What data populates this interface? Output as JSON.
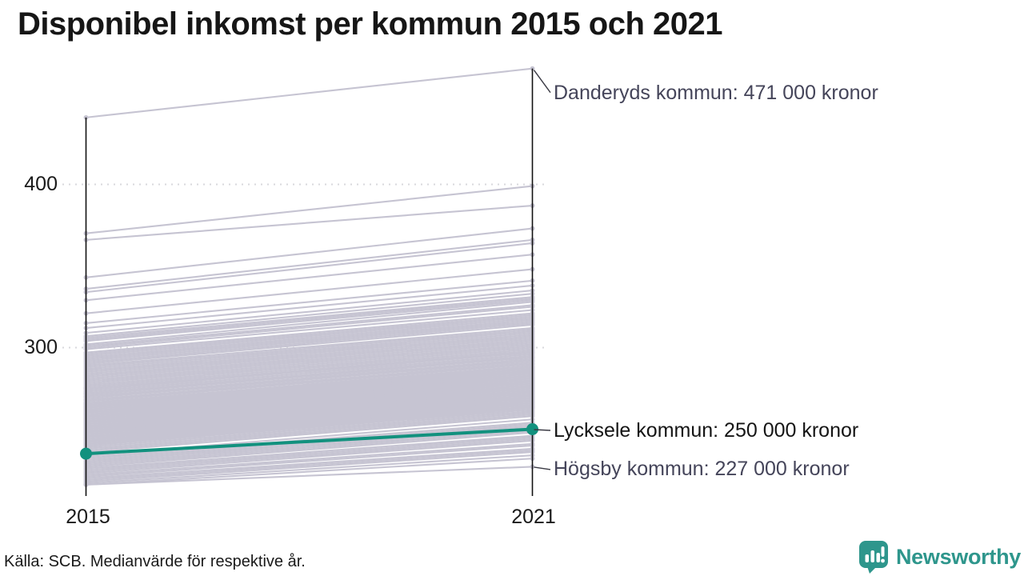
{
  "title": "Disponibel inkomst per kommun 2015 och 2021",
  "source_note": "Källa: SCB. Medianvärde för respektive år.",
  "branding": {
    "logo_text": "Newsworthy",
    "logo_color": "#2e968c",
    "logo_icon": "bar-chart-speech-bubble"
  },
  "chart_data": {
    "type": "line",
    "subtype": "slope",
    "title": "Disponibel inkomst per kommun 2015 och 2021",
    "x": [
      "2015",
      "2021"
    ],
    "unit": "thousand kronor (median disposable income)",
    "ylim": [
      210,
      480
    ],
    "grid": "dotted horizontal at yticks",
    "legend": "none",
    "yticks": [
      {
        "label": "400",
        "value": 400
      },
      {
        "label": "300",
        "value": 300
      }
    ],
    "xticks": [
      {
        "label": "2015"
      },
      {
        "label": "2021"
      }
    ],
    "line_color": "#c6c4d2",
    "axis_color": "#111111",
    "highlight": {
      "name": "Lycksele kommun",
      "values": [
        235,
        250
      ],
      "color": "#12917e"
    },
    "annotations": [
      {
        "id": "max",
        "label": "Danderyds kommun: 471 000 kronor",
        "value": 471,
        "color": "#45455a"
      },
      {
        "id": "highlight",
        "label": "Lycksele kommun: 250 000 kronor",
        "value": 250,
        "color": "#151515"
      },
      {
        "id": "min",
        "label": "Högsby kommun: 227 000 kronor",
        "value": 227,
        "color": "#45455a"
      }
    ],
    "lines": [
      [
        441,
        471
      ],
      [
        370,
        399
      ],
      [
        366,
        387
      ],
      [
        343,
        373
      ],
      [
        336,
        366
      ],
      [
        334,
        364
      ],
      [
        329,
        357
      ],
      [
        321,
        348
      ],
      [
        315,
        341
      ],
      [
        312,
        338
      ],
      [
        309,
        335
      ],
      [
        307,
        333
      ],
      [
        306,
        331
      ],
      [
        305,
        330
      ],
      [
        304,
        329
      ],
      [
        302,
        328
      ],
      [
        301,
        326
      ],
      [
        300,
        325
      ],
      [
        299,
        323
      ],
      [
        297,
        321
      ],
      [
        296,
        320
      ],
      [
        295,
        319
      ],
      [
        294,
        318
      ],
      [
        293,
        317
      ],
      [
        292,
        316
      ],
      [
        291,
        315
      ],
      [
        290,
        314
      ],
      [
        289,
        312
      ],
      [
        288,
        311
      ],
      [
        287,
        310
      ],
      [
        286,
        309
      ],
      [
        285,
        308
      ],
      [
        284,
        307
      ],
      [
        283,
        306
      ],
      [
        282,
        305
      ],
      [
        281,
        304
      ],
      [
        280,
        303
      ],
      [
        279,
        302
      ],
      [
        278,
        301
      ],
      [
        277,
        300
      ],
      [
        276,
        299
      ],
      [
        275,
        298
      ],
      [
        275,
        297
      ],
      [
        274,
        297
      ],
      [
        273,
        296
      ],
      [
        272,
        295
      ],
      [
        272,
        294
      ],
      [
        271,
        294
      ],
      [
        270,
        293
      ],
      [
        270,
        292
      ],
      [
        269,
        292
      ],
      [
        268,
        291
      ],
      [
        268,
        290
      ],
      [
        267,
        290
      ],
      [
        266,
        289
      ],
      [
        266,
        288
      ],
      [
        265,
        288
      ],
      [
        265,
        287
      ],
      [
        264,
        287
      ],
      [
        264,
        286
      ],
      [
        263,
        286
      ],
      [
        263,
        285
      ],
      [
        262,
        285
      ],
      [
        262,
        284
      ],
      [
        261,
        284
      ],
      [
        261,
        283
      ],
      [
        260,
        283
      ],
      [
        260,
        282
      ],
      [
        259,
        282
      ],
      [
        259,
        281
      ],
      [
        258,
        281
      ],
      [
        258,
        280
      ],
      [
        257,
        280
      ],
      [
        257,
        279
      ],
      [
        256,
        279
      ],
      [
        256,
        278
      ],
      [
        255,
        278
      ],
      [
        255,
        277
      ],
      [
        254,
        277
      ],
      [
        254,
        276
      ],
      [
        253,
        276
      ],
      [
        253,
        275
      ],
      [
        252,
        275
      ],
      [
        252,
        274
      ],
      [
        251,
        274
      ],
      [
        251,
        273
      ],
      [
        250,
        273
      ],
      [
        250,
        272
      ],
      [
        249,
        272
      ],
      [
        249,
        271
      ],
      [
        248,
        271
      ],
      [
        248,
        270
      ],
      [
        247,
        270
      ],
      [
        247,
        269
      ],
      [
        246,
        269
      ],
      [
        246,
        268
      ],
      [
        245,
        268
      ],
      [
        245,
        267
      ],
      [
        244,
        267
      ],
      [
        244,
        266
      ],
      [
        243,
        266
      ],
      [
        243,
        265
      ],
      [
        242,
        265
      ],
      [
        242,
        264
      ],
      [
        241,
        264
      ],
      [
        241,
        263
      ],
      [
        240,
        263
      ],
      [
        240,
        262
      ],
      [
        239,
        261
      ],
      [
        238,
        260
      ],
      [
        237,
        259
      ],
      [
        236,
        258
      ],
      [
        234,
        256
      ],
      [
        233,
        254
      ],
      [
        232,
        253
      ],
      [
        231,
        252
      ],
      [
        230,
        251
      ],
      [
        229,
        250
      ],
      [
        228,
        249
      ],
      [
        227,
        248
      ],
      [
        226,
        246
      ],
      [
        225,
        245
      ],
      [
        224,
        244
      ],
      [
        223,
        243
      ],
      [
        222,
        241
      ],
      [
        221,
        240
      ],
      [
        220,
        238
      ],
      [
        219,
        237
      ],
      [
        218,
        236
      ],
      [
        217,
        234
      ],
      [
        216,
        232
      ],
      [
        216,
        227
      ]
    ]
  }
}
